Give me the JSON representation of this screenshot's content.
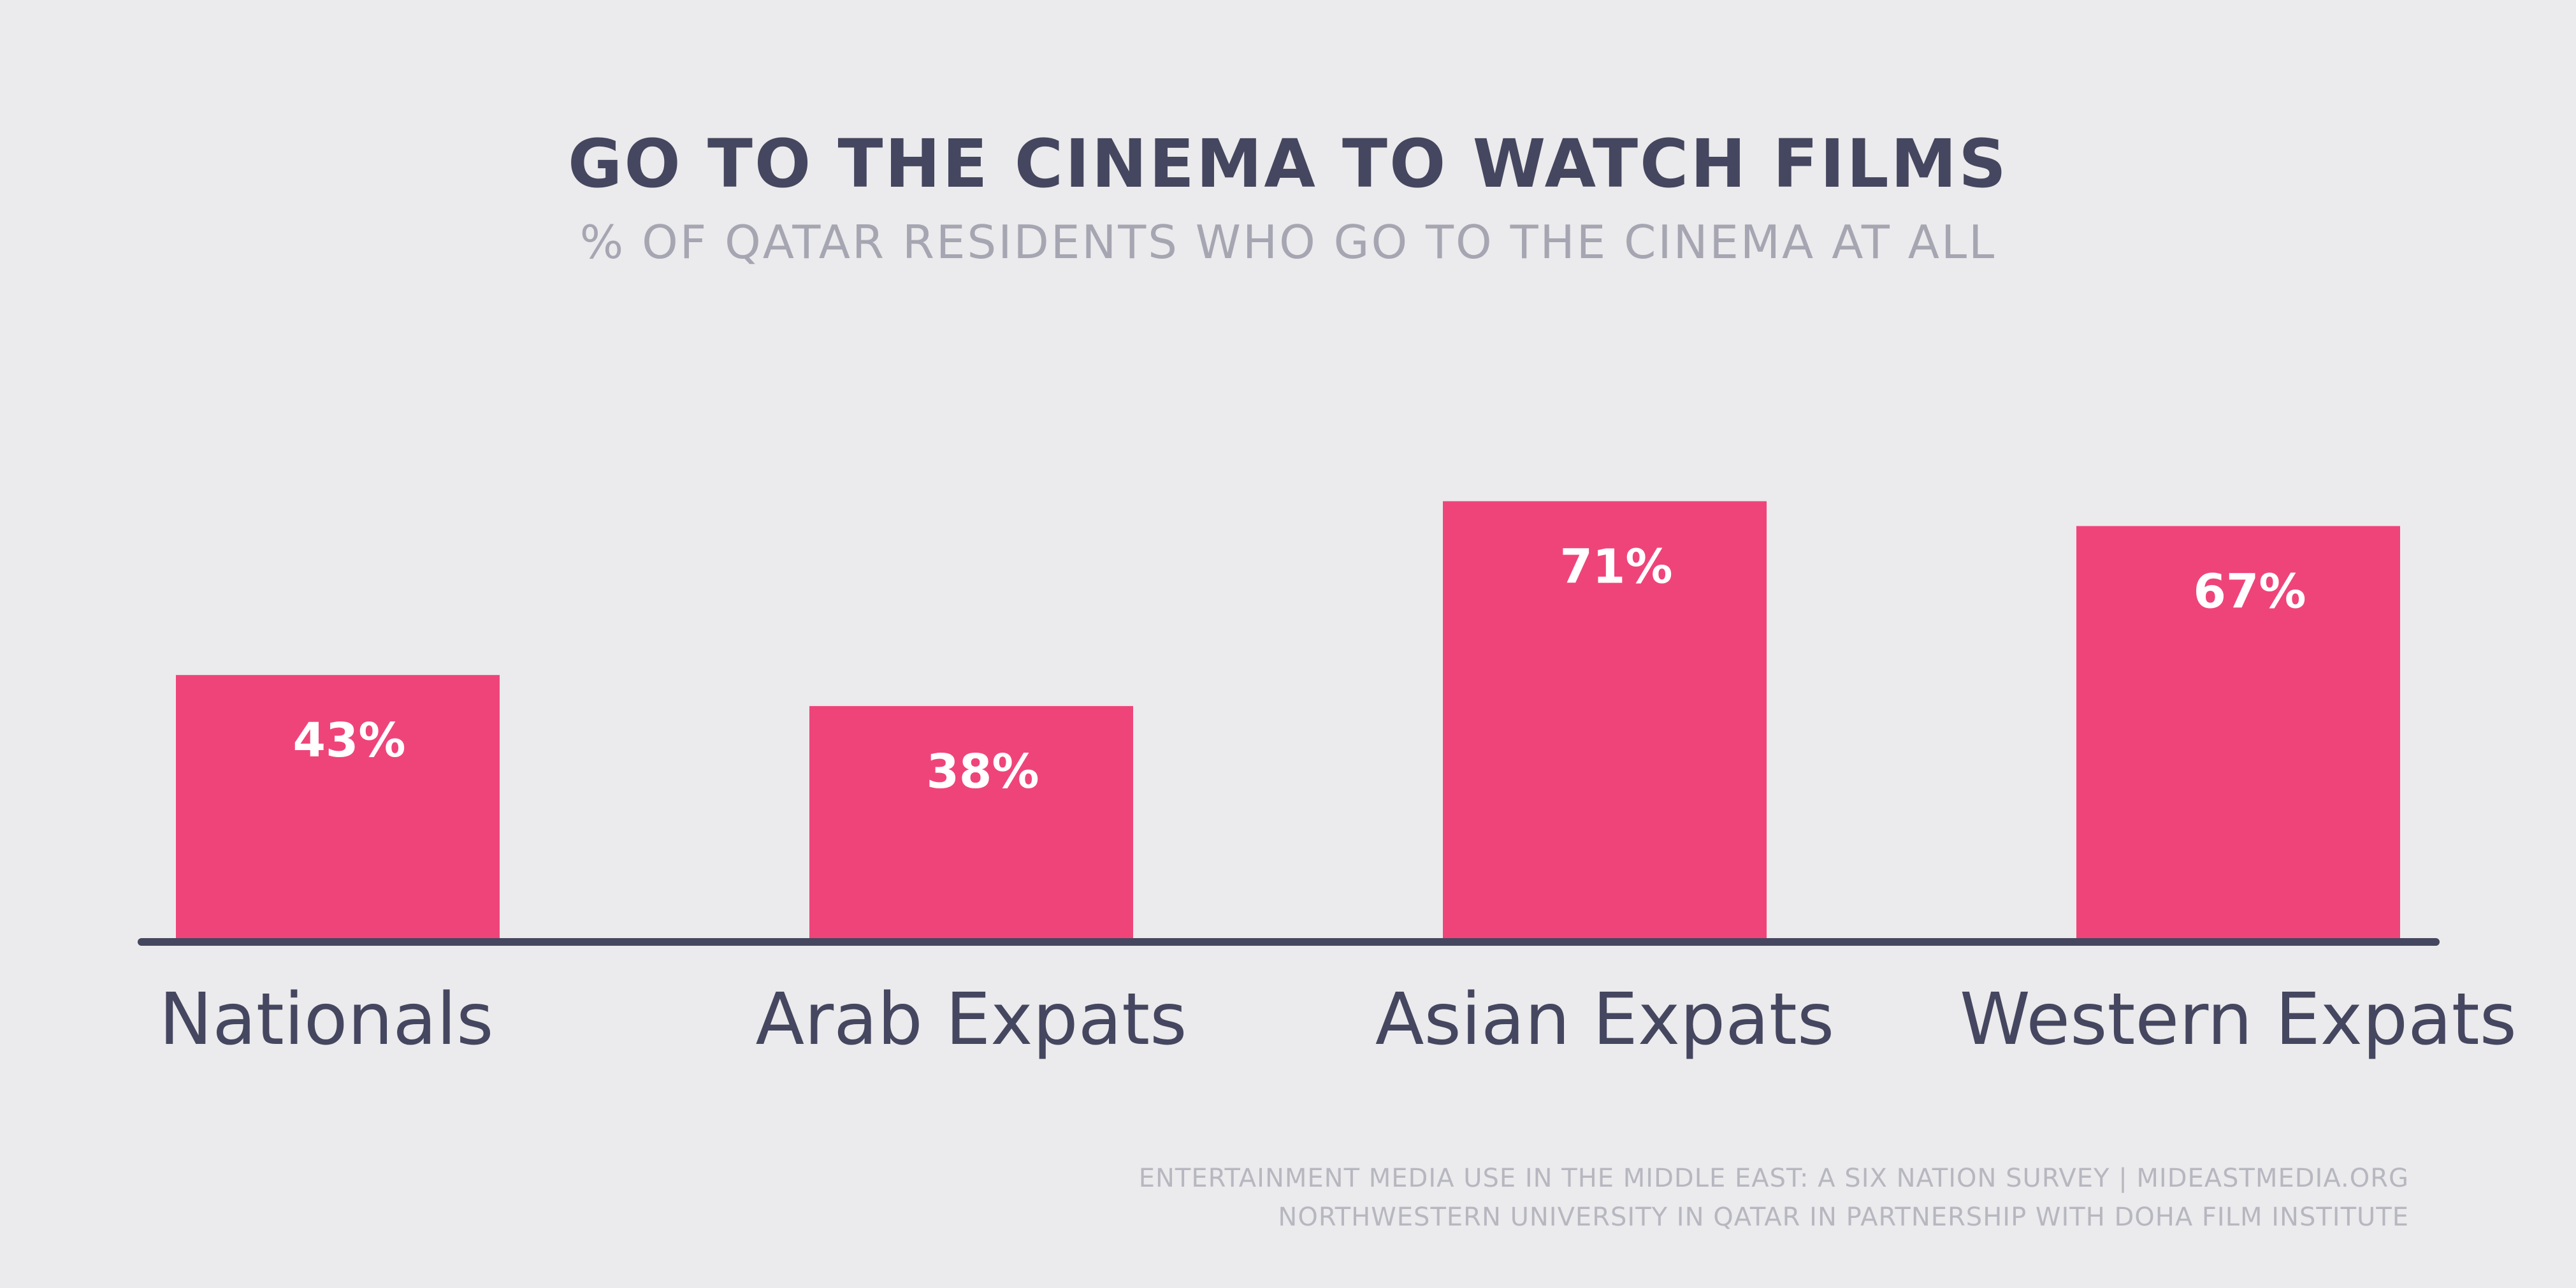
{
  "chart_data": {
    "type": "bar",
    "title": "GO TO THE CINEMA TO WATCH FILMS",
    "subtitle": "% OF QATAR RESIDENTS WHO GO TO THE CINEMA AT ALL",
    "categories": [
      "Nationals",
      "Arab Expats",
      "Asian Expats",
      "Western Expats"
    ],
    "values": [
      43,
      38,
      71,
      67
    ],
    "data_labels": [
      "43%",
      "38%",
      "71%",
      "67%"
    ],
    "ylim": [
      0,
      100
    ],
    "grid": false,
    "legend": "none",
    "colors": {
      "bar": "#ef447a",
      "baseline": "#45465f",
      "category_label": "#45465f",
      "data_label": "#ffffff"
    }
  },
  "footer": {
    "line1": "ENTERTAINMENT MEDIA USE IN THE MIDDLE EAST: A SIX NATION SURVEY | MIDEASTMEDIA.ORG",
    "line2": "NORTHWESTERN UNIVERSITY IN QATAR IN PARTNERSHIP WITH DOHA FILM INSTITUTE"
  }
}
